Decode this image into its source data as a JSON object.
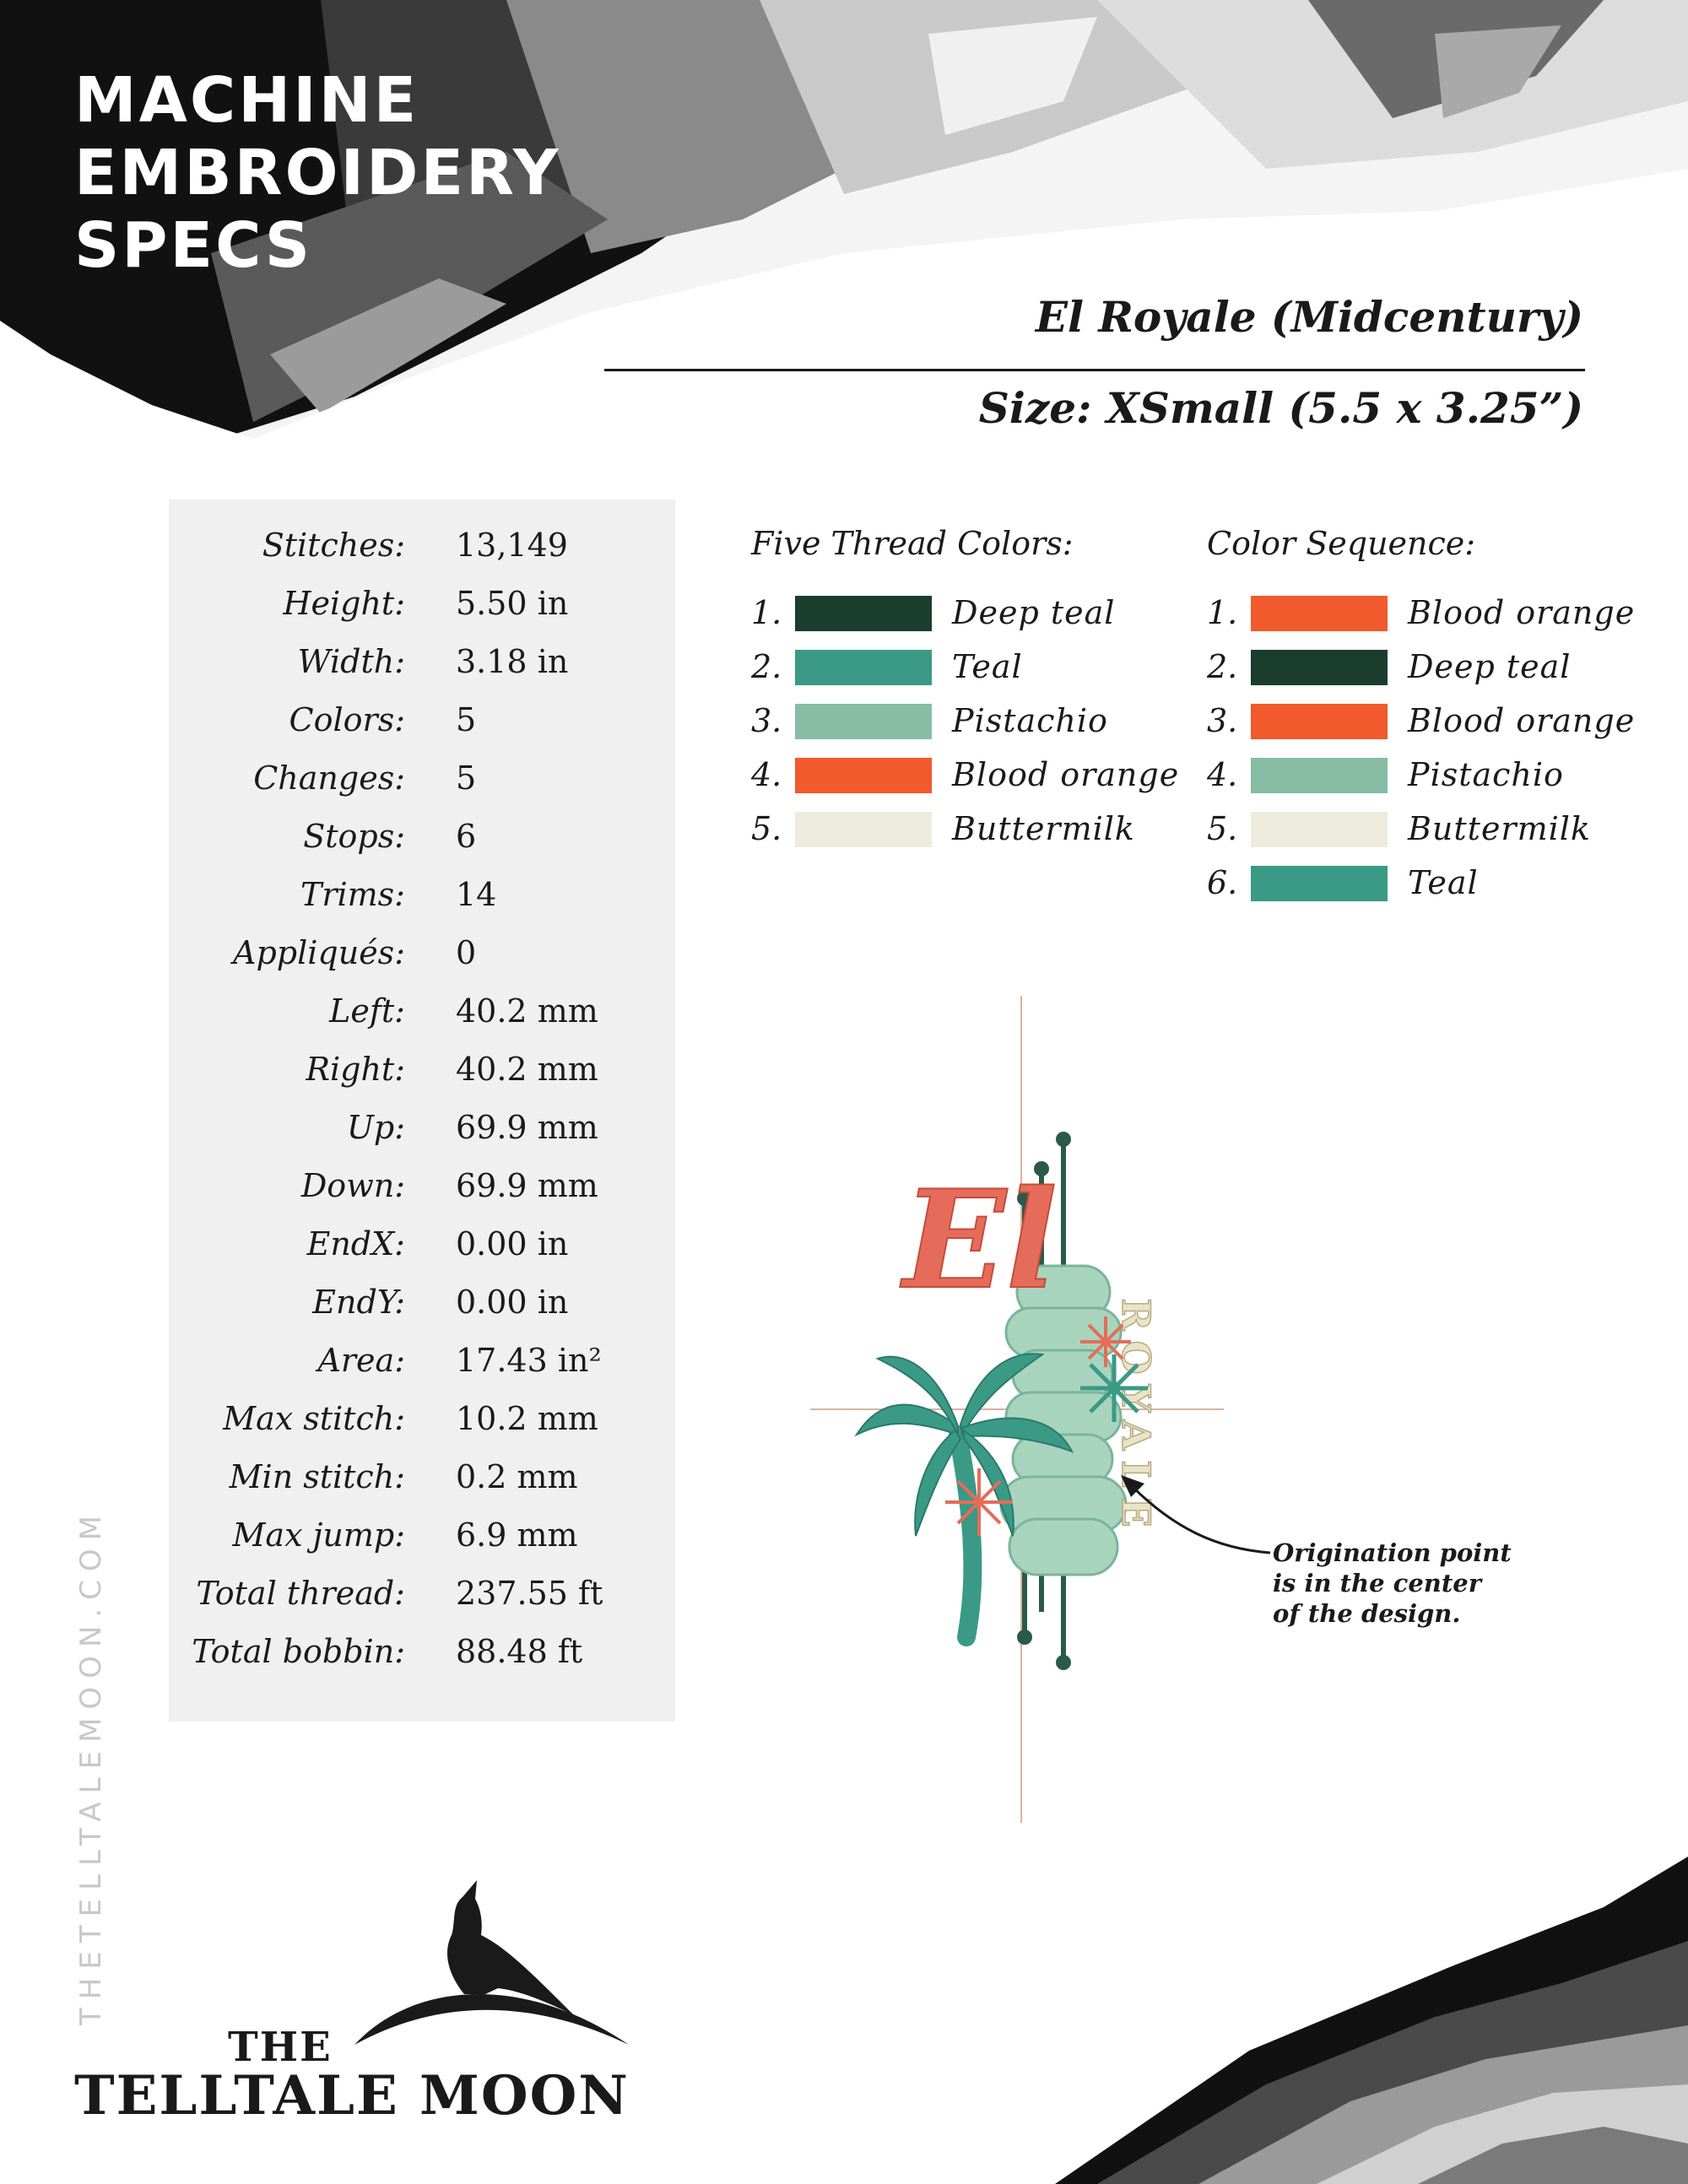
{
  "header": {
    "title_lines": [
      "Machine",
      "Embroidery",
      "Specs"
    ],
    "design_name": "El Royale (Midcentury)",
    "size": "Size: XSmall (5.5 x 3.25”)"
  },
  "specs": [
    {
      "label": "Stitches:",
      "value": "13,149"
    },
    {
      "label": "Height:",
      "value": "5.50 in"
    },
    {
      "label": "Width:",
      "value": "3.18 in"
    },
    {
      "label": "Colors:",
      "value": "5"
    },
    {
      "label": "Changes:",
      "value": "5"
    },
    {
      "label": "Stops:",
      "value": "6"
    },
    {
      "label": "Trims:",
      "value": "14"
    },
    {
      "label": "Appliqués:",
      "value": "0"
    },
    {
      "label": "Left:",
      "value": "40.2 mm"
    },
    {
      "label": "Right:",
      "value": "40.2 mm"
    },
    {
      "label": "Up:",
      "value": "69.9 mm"
    },
    {
      "label": "Down:",
      "value": "69.9 mm"
    },
    {
      "label": "EndX:",
      "value": "0.00 in"
    },
    {
      "label": "EndY:",
      "value": "0.00 in"
    },
    {
      "label": "Area:",
      "value": "17.43 in²"
    },
    {
      "label": "Max stitch:",
      "value": "10.2 mm"
    },
    {
      "label": "Min stitch:",
      "value": "0.2 mm"
    },
    {
      "label": "Max jump:",
      "value": "6.9 mm"
    },
    {
      "label": "Total thread:",
      "value": "237.55 ft"
    },
    {
      "label": "Total bobbin:",
      "value": "88.48 ft"
    }
  ],
  "thread_colors": {
    "heading": "Five Thread Colors:",
    "items": [
      {
        "num": "1.",
        "name": "Deep teal",
        "color": "#1a3d2d"
      },
      {
        "num": "2.",
        "name": "Teal",
        "color": "#3a9a86"
      },
      {
        "num": "3.",
        "name": "Pistachio",
        "color": "#86bda4"
      },
      {
        "num": "4.",
        "name": "Blood orange",
        "color": "#f05a2c"
      },
      {
        "num": "5.",
        "name": "Buttermilk",
        "color": "#eeecdc"
      }
    ]
  },
  "color_sequence": {
    "heading": "Color Sequence:",
    "items": [
      {
        "num": "1.",
        "name": "Blood orange",
        "color": "#f05a2c"
      },
      {
        "num": "2.",
        "name": "Deep teal",
        "color": "#1a3d2d"
      },
      {
        "num": "3.",
        "name": "Blood orange",
        "color": "#f05a2c"
      },
      {
        "num": "4.",
        "name": "Pistachio",
        "color": "#86bda4"
      },
      {
        "num": "5.",
        "name": "Buttermilk",
        "color": "#eeecdc"
      },
      {
        "num": "6.",
        "name": "Teal",
        "color": "#3a9a86"
      }
    ]
  },
  "design_artwork": {
    "script_text": "El",
    "sign_text": "ROYALE"
  },
  "callout": {
    "lines": [
      "Origination point",
      "is in the center",
      "of the design."
    ]
  },
  "side_url": "THETELLTALEMOON.COM",
  "brand": {
    "the": "THE",
    "name": "TELLTALE MOON"
  }
}
